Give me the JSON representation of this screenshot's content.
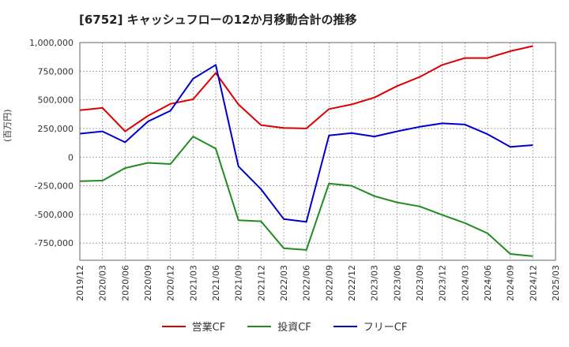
{
  "title": "[6752]  キャッシュフローの12か月移動合計の推移",
  "ylabel": "(百万円)",
  "colors": {
    "operating": "#dd0000",
    "investing": "#228b22",
    "free": "#0000cc"
  },
  "chart_data": {
    "type": "line",
    "title": "[6752]  キャッシュフローの12か月移動合計の推移",
    "ylabel": "(百万円)",
    "xlabel": "",
    "ylim": [
      -900000,
      1000000
    ],
    "grid": true,
    "legend_position": "bottom",
    "x": [
      "2019/12",
      "2020/03",
      "2020/06",
      "2020/09",
      "2020/12",
      "2021/03",
      "2021/06",
      "2021/09",
      "2021/12",
      "2022/03",
      "2022/06",
      "2022/09",
      "2022/12",
      "2023/03",
      "2023/06",
      "2023/09",
      "2023/12",
      "2024/03",
      "2024/06",
      "2024/09",
      "2024/12",
      "2025/03"
    ],
    "y_ticks": [
      1000000,
      750000,
      500000,
      250000,
      0,
      -250000,
      -500000,
      -750000
    ],
    "y_tick_labels": [
      "1,000,000",
      "750,000",
      "500,000",
      "250,000",
      "0",
      "-250,000",
      "-500,000",
      "-750,000"
    ],
    "series": [
      {
        "name": "営業CF",
        "key": "operating",
        "values": [
          410000,
          430000,
          225000,
          360000,
          465000,
          505000,
          735000,
          460000,
          280000,
          255000,
          250000,
          420000,
          460000,
          520000,
          620000,
          700000,
          805000,
          865000,
          865000,
          925000,
          970000,
          null
        ]
      },
      {
        "name": "投資CF",
        "key": "investing",
        "values": [
          -210000,
          -205000,
          -95000,
          -50000,
          -60000,
          180000,
          75000,
          -550000,
          -560000,
          -795000,
          -810000,
          -230000,
          -250000,
          -340000,
          -395000,
          -430000,
          -505000,
          -575000,
          -665000,
          -845000,
          -865000,
          null
        ]
      },
      {
        "name": "フリーCF",
        "key": "free",
        "values": [
          205000,
          225000,
          130000,
          310000,
          405000,
          685000,
          805000,
          -80000,
          -280000,
          -540000,
          -565000,
          190000,
          210000,
          180000,
          225000,
          265000,
          295000,
          285000,
          200000,
          90000,
          105000,
          null
        ]
      }
    ]
  }
}
